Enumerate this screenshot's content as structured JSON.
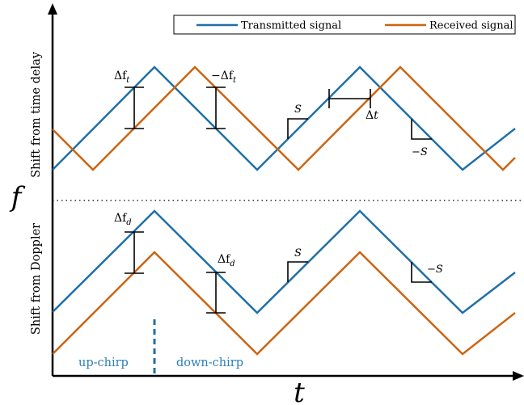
{
  "legend": {
    "transmitted_label": "Transmitted signal",
    "received_label": "Received signal"
  },
  "colors": {
    "transmitted": "#1f6fa8",
    "received": "#cc6410",
    "annotation": "#000000",
    "chirp_text": "#2a7fb8"
  },
  "axes": {
    "y_symbol": "f",
    "x_symbol": "t"
  },
  "panels": {
    "top_ylabel": "Shift from time delay",
    "bottom_ylabel": "Shift from Doppler"
  },
  "annotations": {
    "top_delta_ft": "Δf",
    "top_delta_ft_sub": "t",
    "top_neg_delta_ft": "−Δf",
    "top_neg_delta_ft_sub": "t",
    "top_slope_up": "S",
    "top_delta_t": "Δt",
    "top_slope_down": "−S",
    "bottom_delta_fd": "Δf",
    "bottom_delta_fd_sub": "d",
    "bottom_delta_fd2": "Δf",
    "bottom_delta_fd2_sub": "d",
    "bottom_slope_up": "S",
    "bottom_slope_down": "−S",
    "up_chirp": "up-chirp",
    "down_chirp": "down-chirp"
  }
}
